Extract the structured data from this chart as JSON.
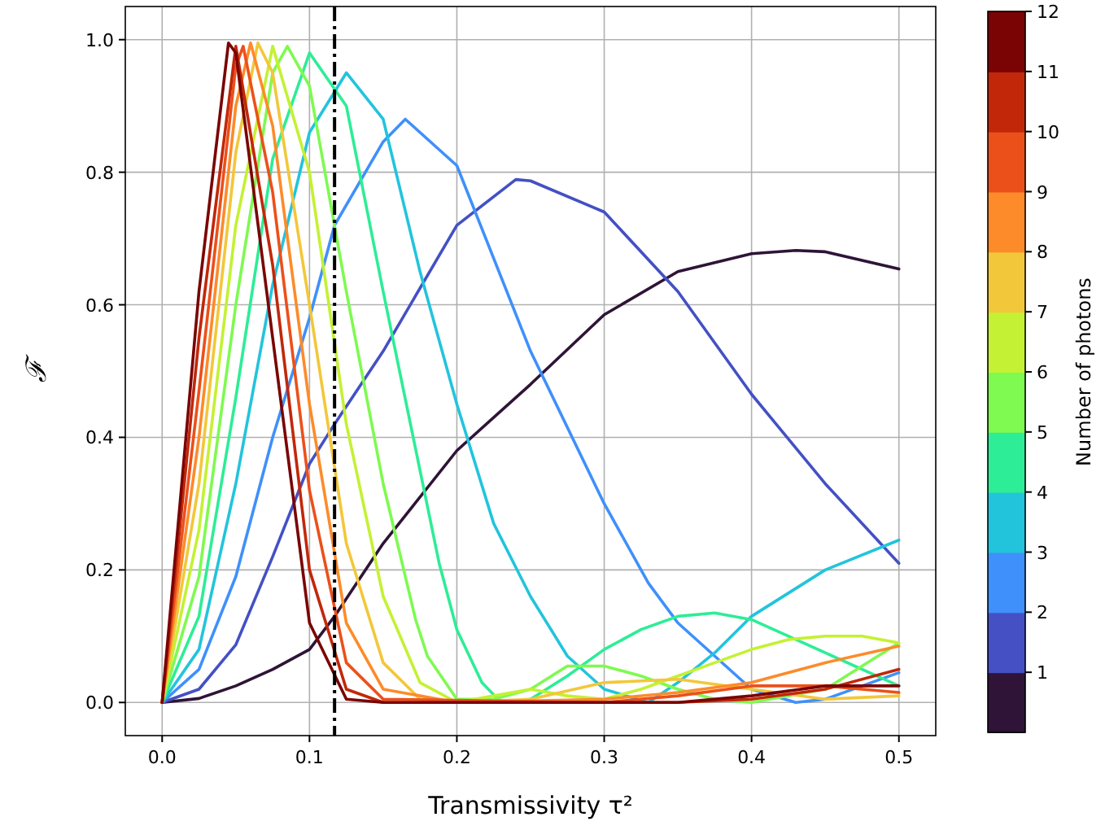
{
  "chart_data": {
    "type": "line",
    "xlabel": "Transmissivity τ²",
    "ylabel": "ℱ",
    "clabel": "Number of photons",
    "clim": [
      0,
      12
    ],
    "cticks": [
      1,
      2,
      3,
      4,
      5,
      6,
      7,
      8,
      9,
      10,
      11,
      12
    ],
    "xlim": [
      -0.025,
      0.525
    ],
    "ylim": [
      -0.05,
      1.05
    ],
    "xticks": [
      {
        "value": 0,
        "label": "0.0"
      },
      {
        "value": 0.1,
        "label": "0.1"
      },
      {
        "value": 0.2,
        "label": "0.2"
      },
      {
        "value": 0.3,
        "label": "0.3"
      },
      {
        "value": 0.4,
        "label": "0.4"
      },
      {
        "value": 0.5,
        "label": "0.5"
      }
    ],
    "yticks": [
      {
        "value": 0,
        "label": "0.0"
      },
      {
        "value": 0.2,
        "label": "0.2"
      },
      {
        "value": 0.4,
        "label": "0.4"
      },
      {
        "value": 0.6,
        "label": "0.6"
      },
      {
        "value": 0.8,
        "label": "0.8"
      },
      {
        "value": 1,
        "label": "1.0"
      }
    ],
    "grid": true,
    "marker": "none",
    "line_style": "solid",
    "ref_lines": [
      {
        "axis": "x",
        "value": 0.117,
        "color": "#000000",
        "line_style": "dashed"
      }
    ],
    "series": [
      {
        "color": "#2f1437",
        "x": [
          0,
          0.025,
          0.05,
          0.075,
          0.1,
          0.117,
          0.15,
          0.2,
          0.25,
          0.3,
          0.35,
          0.4,
          0.43,
          0.45,
          0.5
        ],
        "values": [
          0,
          0.006,
          0.025,
          0.05,
          0.08,
          0.13,
          0.24,
          0.38,
          0.48,
          0.585,
          0.65,
          0.677,
          0.682,
          0.68,
          0.654
        ]
      },
      {
        "color": "#4450c4",
        "x": [
          0,
          0.025,
          0.05,
          0.075,
          0.1,
          0.117,
          0.15,
          0.2,
          0.24,
          0.25,
          0.3,
          0.35,
          0.4,
          0.45,
          0.5
        ],
        "values": [
          0,
          0.02,
          0.087,
          0.22,
          0.36,
          0.42,
          0.53,
          0.72,
          0.789,
          0.787,
          0.74,
          0.62,
          0.465,
          0.33,
          0.21
        ]
      },
      {
        "color": "#3f90fb",
        "x": [
          0,
          0.025,
          0.05,
          0.075,
          0.1,
          0.117,
          0.15,
          0.165,
          0.2,
          0.25,
          0.3,
          0.33,
          0.35,
          0.4,
          0.43,
          0.45,
          0.5
        ],
        "values": [
          0,
          0.05,
          0.19,
          0.4,
          0.58,
          0.72,
          0.846,
          0.88,
          0.81,
          0.53,
          0.3,
          0.18,
          0.12,
          0.02,
          0,
          0.005,
          0.045
        ]
      },
      {
        "color": "#22c4dc",
        "x": [
          0,
          0.025,
          0.05,
          0.075,
          0.1,
          0.125,
          0.15,
          0.175,
          0.2,
          0.225,
          0.25,
          0.275,
          0.3,
          0.33,
          0.35,
          0.375,
          0.4,
          0.45,
          0.5
        ],
        "values": [
          0,
          0.08,
          0.33,
          0.63,
          0.86,
          0.95,
          0.88,
          0.65,
          0.45,
          0.27,
          0.16,
          0.07,
          0.02,
          0,
          0.03,
          0.075,
          0.13,
          0.2,
          0.245
        ]
      },
      {
        "color": "#2ded96",
        "x": [
          0,
          0.025,
          0.05,
          0.075,
          0.1,
          0.125,
          0.15,
          0.175,
          0.188,
          0.2,
          0.217,
          0.23,
          0.25,
          0.275,
          0.3,
          0.325,
          0.35,
          0.375,
          0.4,
          0.45,
          0.5
        ],
        "values": [
          0,
          0.13,
          0.46,
          0.82,
          0.98,
          0.9,
          0.62,
          0.35,
          0.21,
          0.11,
          0.03,
          0,
          0.005,
          0.04,
          0.08,
          0.11,
          0.13,
          0.135,
          0.125,
          0.075,
          0.025
        ]
      },
      {
        "color": "#7efa50",
        "x": [
          0,
          0.025,
          0.05,
          0.075,
          0.085,
          0.1,
          0.125,
          0.15,
          0.172,
          0.18,
          0.2,
          0.225,
          0.25,
          0.275,
          0.3,
          0.325,
          0.35,
          0.375,
          0.4,
          0.45,
          0.5
        ],
        "values": [
          0,
          0.19,
          0.6,
          0.95,
          0.99,
          0.93,
          0.62,
          0.33,
          0.125,
          0.07,
          0.005,
          0.005,
          0.02,
          0.055,
          0.055,
          0.04,
          0.02,
          0.005,
          0,
          0.02,
          0.09
        ]
      },
      {
        "color": "#c4f133",
        "x": [
          0,
          0.025,
          0.05,
          0.075,
          0.1,
          0.125,
          0.15,
          0.175,
          0.2,
          0.225,
          0.25,
          0.275,
          0.3,
          0.325,
          0.35,
          0.375,
          0.4,
          0.425,
          0.45,
          0.475,
          0.5
        ],
        "values": [
          0,
          0.26,
          0.72,
          0.99,
          0.8,
          0.42,
          0.16,
          0.03,
          0,
          0.01,
          0.02,
          0.01,
          0.005,
          0.02,
          0.04,
          0.06,
          0.08,
          0.095,
          0.1,
          0.1,
          0.09
        ]
      },
      {
        "color": "#f2c73a",
        "x": [
          0,
          0.025,
          0.05,
          0.065,
          0.075,
          0.1,
          0.125,
          0.15,
          0.175,
          0.2,
          0.25,
          0.3,
          0.35,
          0.4,
          0.45,
          0.5
        ],
        "values": [
          0,
          0.33,
          0.83,
          0.995,
          0.95,
          0.6,
          0.24,
          0.06,
          0.005,
          0,
          0.005,
          0.03,
          0.035,
          0.02,
          0.005,
          0.01
        ]
      },
      {
        "color": "#fd8b2a",
        "x": [
          0,
          0.025,
          0.05,
          0.06,
          0.075,
          0.1,
          0.125,
          0.15,
          0.2,
          0.3,
          0.35,
          0.4,
          0.45,
          0.5
        ],
        "values": [
          0,
          0.4,
          0.9,
          0.995,
          0.87,
          0.45,
          0.12,
          0.02,
          0,
          0.005,
          0.015,
          0.03,
          0.06,
          0.085
        ]
      },
      {
        "color": "#ec501a",
        "x": [
          0,
          0.025,
          0.05,
          0.055,
          0.075,
          0.1,
          0.125,
          0.15,
          0.3,
          0.35,
          0.4,
          0.45,
          0.5
        ],
        "values": [
          0,
          0.47,
          0.96,
          0.99,
          0.77,
          0.32,
          0.06,
          0.005,
          0,
          0.01,
          0.025,
          0.025,
          0.015
        ]
      },
      {
        "color": "#c2270a",
        "x": [
          0,
          0.025,
          0.05,
          0.075,
          0.1,
          0.125,
          0.15,
          0.35,
          0.4,
          0.45,
          0.5
        ],
        "values": [
          0,
          0.55,
          0.99,
          0.66,
          0.2,
          0.02,
          0,
          0,
          0.005,
          0.02,
          0.05
        ]
      },
      {
        "color": "#7a0403",
        "x": [
          0,
          0.025,
          0.045,
          0.05,
          0.075,
          0.1,
          0.125,
          0.15,
          0.35,
          0.4,
          0.45,
          0.5
        ],
        "values": [
          0,
          0.62,
          0.995,
          0.98,
          0.55,
          0.12,
          0.005,
          0,
          0,
          0.01,
          0.025,
          0.025
        ]
      }
    ]
  }
}
